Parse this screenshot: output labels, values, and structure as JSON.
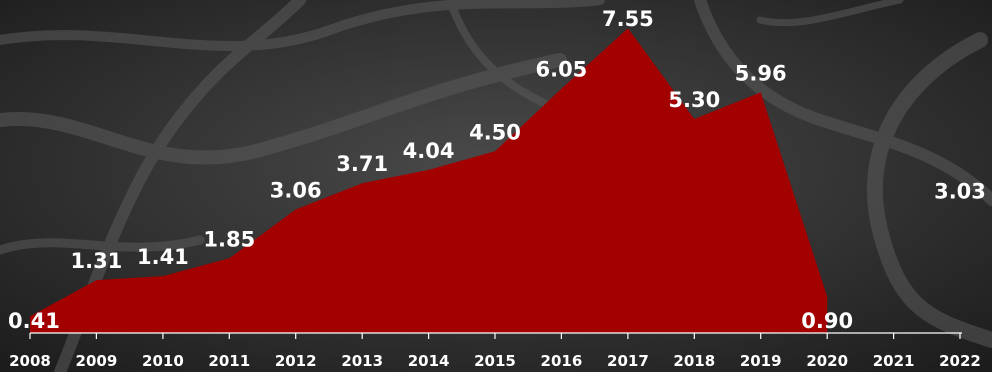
{
  "chart_data": {
    "type": "area",
    "x": [
      "2008",
      "2009",
      "2010",
      "2011",
      "2012",
      "2013",
      "2014",
      "2015",
      "2016",
      "2017",
      "2018",
      "2019",
      "2020",
      "2021",
      "2022"
    ],
    "values": [
      0.41,
      1.31,
      1.41,
      1.85,
      3.06,
      3.71,
      4.04,
      4.5,
      6.05,
      7.55,
      5.3,
      5.96,
      0.9,
      null,
      3.03
    ],
    "labels": [
      "0.41",
      "1.31",
      "1.41",
      "1.85",
      "3.06",
      "3.71",
      "4.04",
      "4.50",
      "6.05",
      "7.55",
      "5.30",
      "5.96",
      "0.90",
      "3.03"
    ],
    "title": "",
    "xlabel": "",
    "ylabel": "",
    "ylim": [
      0,
      8
    ],
    "grid": false,
    "colors": {
      "area": "#a30000",
      "text": "#ffffff",
      "background": "#2a2a2a"
    }
  }
}
